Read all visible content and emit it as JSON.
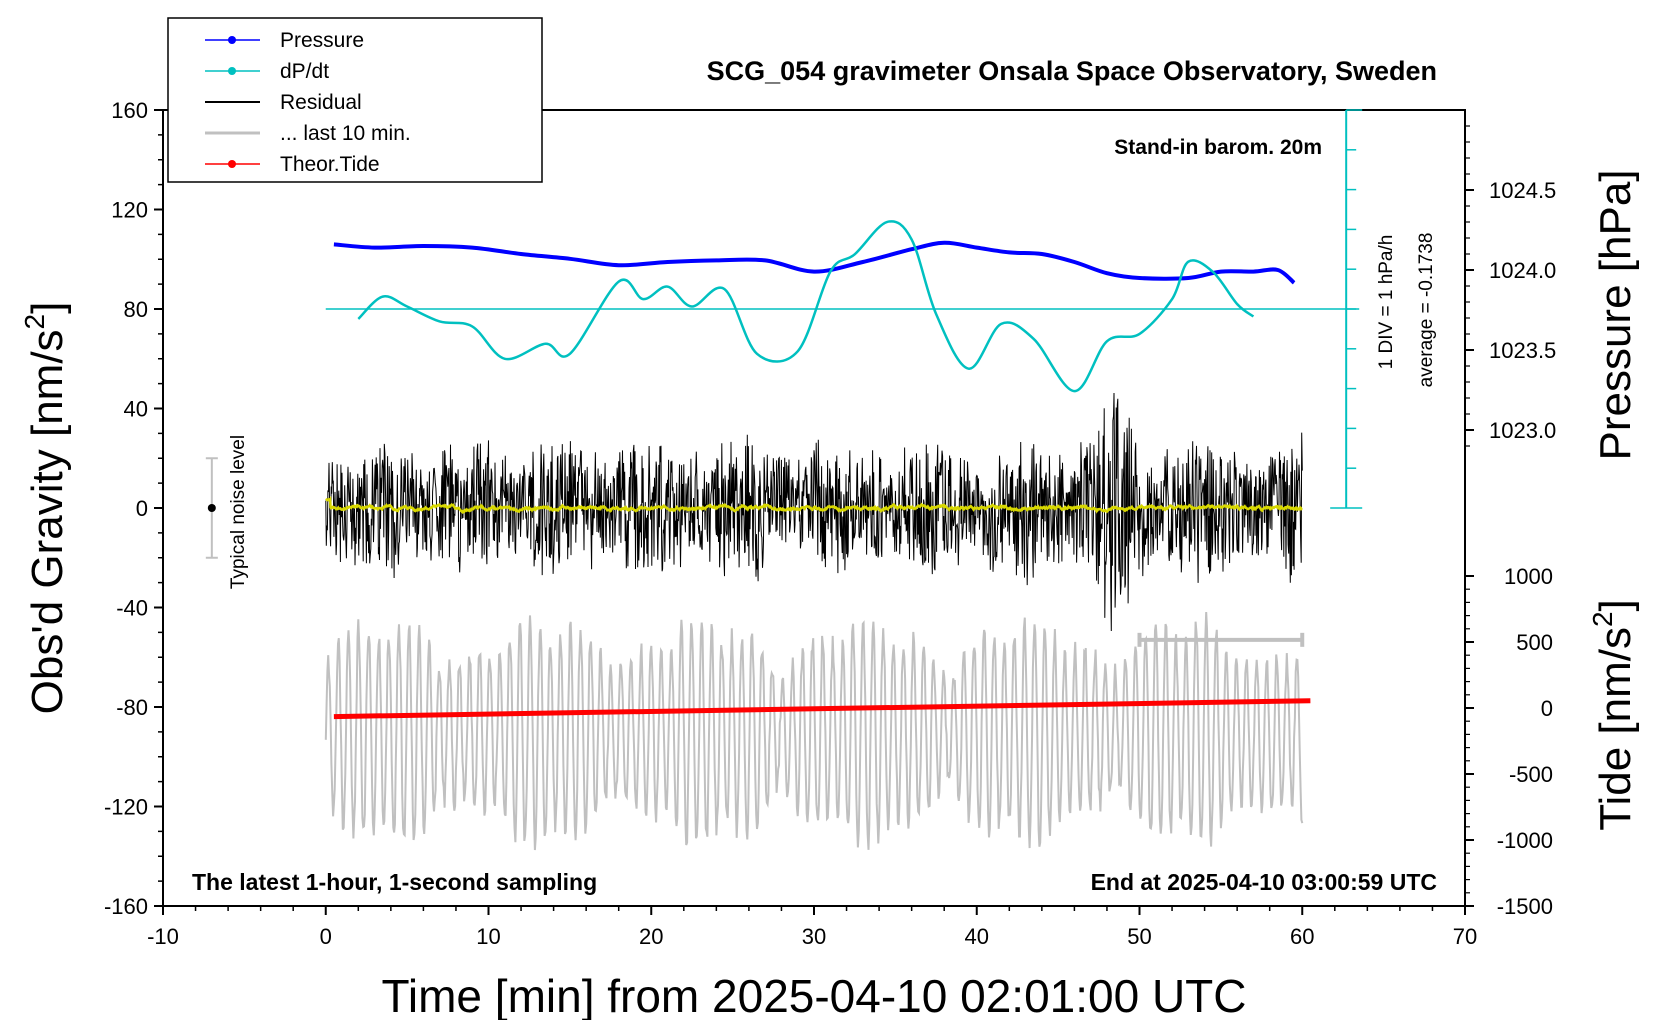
{
  "chart_data": {
    "type": "line",
    "title": "SCG_054 gravimeter Onsala Space Observatory, Sweden",
    "xlabel": "Time [min] from 2025-04-10 02:01:00 UTC",
    "xlim": [
      -10,
      70
    ],
    "xticks": [
      "-10",
      "0",
      "10",
      "20",
      "30",
      "40",
      "50",
      "60",
      "70"
    ],
    "left_axis": {
      "label": "Obs'd Gravity [nm/s",
      "label_sup": "2",
      "label_end": "]",
      "ylim": [
        -160,
        160
      ],
      "ticks": [
        "-160",
        "-120",
        "-80",
        "-40",
        "0",
        "40",
        "80",
        "120",
        "160"
      ]
    },
    "right_pressure_axis": {
      "label": "Pressure [hPa]",
      "ticks": [
        "1023.0",
        "1023.5",
        "1024.0",
        "1024.5"
      ]
    },
    "right_tide_axis": {
      "label": "Tide [nm/s",
      "label_sup": "2",
      "label_end": "]",
      "ylim": [
        -1500,
        1000
      ],
      "ticks": [
        "-1500",
        "-1000",
        "-500",
        "0",
        "500",
        "1000"
      ]
    },
    "dpdt_scale": {
      "div_label": "1 DIV = 1 hPa/h",
      "average_label": "average = -0.1738"
    },
    "legend": [
      {
        "name": "Pressure",
        "color": "#0000ff",
        "style": "line-dot"
      },
      {
        "name": "dP/dt",
        "color": "#00c0c0",
        "style": "line-dot"
      },
      {
        "name": "Residual",
        "color": "#000000",
        "style": "line"
      },
      {
        "name": "... last 10 min.",
        "color": "#c0c0c0",
        "style": "line"
      },
      {
        "name": "Theor.Tide",
        "color": "#ff0000",
        "style": "line-dot"
      }
    ],
    "annotations": {
      "barometer": "Stand-in barom. 20m",
      "noise": "Typical noise level",
      "bottom_left": "The latest 1-hour, 1-second sampling",
      "bottom_right": "End at 2025-04-10 03:00:59 UTC"
    },
    "noise_level": {
      "x": -7,
      "center": 0,
      "halfwidth": 20
    },
    "last10_bar": {
      "x_start": 50,
      "x_end": 60
    },
    "series": [
      {
        "name": "Pressure",
        "color": "#0000ff",
        "axis": "pressure_hPa",
        "x": [
          0.5,
          3,
          6,
          9,
          12,
          15,
          18,
          21,
          24,
          27,
          30,
          33,
          36,
          38,
          40,
          42,
          44,
          46,
          48,
          50,
          53,
          55,
          57,
          58.5,
          59.5
        ],
        "y": [
          1024.16,
          1024.14,
          1024.15,
          1024.14,
          1024.1,
          1024.07,
          1024.03,
          1024.05,
          1024.06,
          1024.06,
          1023.99,
          1024.05,
          1024.13,
          1024.17,
          1024.14,
          1024.11,
          1024.1,
          1024.05,
          1023.98,
          1023.95,
          1023.95,
          1023.99,
          1023.99,
          1024.0,
          1023.92
        ]
      },
      {
        "name": "dP/dt",
        "color": "#00c0c0",
        "axis": "left",
        "x": [
          2,
          3.5,
          5,
          7,
          9,
          11,
          13.5,
          15,
          18,
          19.5,
          21,
          22.5,
          24.5,
          26.5,
          29,
          31,
          32.5,
          34.5,
          36,
          37.5,
          39.5,
          41.5,
          43.5,
          46,
          48,
          50,
          52,
          53,
          54.5,
          56,
          57
        ],
        "y": [
          76,
          85,
          81,
          75,
          73,
          60,
          66,
          62,
          91,
          84,
          89,
          81,
          88,
          62,
          63,
          95,
          102,
          115,
          108,
          78,
          56,
          74,
          68,
          47,
          67,
          70,
          84,
          99,
          95,
          82,
          77
        ]
      },
      {
        "name": "Theor.Tide",
        "color": "#ff0000",
        "axis": "tide",
        "x": [
          0.5,
          60.5
        ],
        "y": [
          -65,
          55
        ]
      }
    ],
    "residual_note": "High-frequency residual ±40 nm/s² (peaks near 60), yellow running mean near 0; grey last-10-min trace centered about -90 nm/s²"
  }
}
